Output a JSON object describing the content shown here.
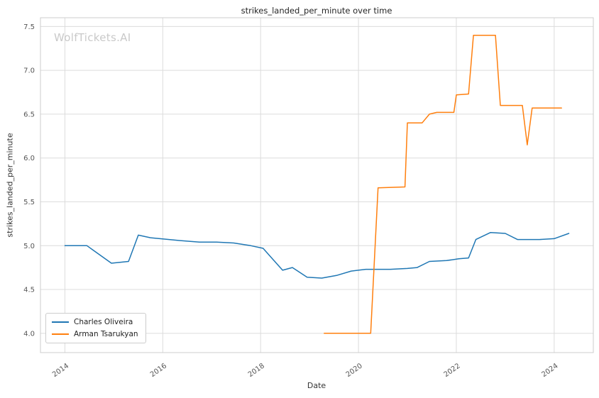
{
  "watermark": "WolfTickets.AI",
  "chart_data": {
    "type": "line",
    "title": "strikes_landed_per_minute over time",
    "xlabel": "Date",
    "ylabel": "strikes_landed_per_minute",
    "xlim": [
      2013.5,
      2024.8
    ],
    "ylim": [
      3.78,
      7.6
    ],
    "xticks": [
      2014,
      2016,
      2018,
      2020,
      2022,
      2024
    ],
    "yticks": [
      4.0,
      4.5,
      5.0,
      5.5,
      6.0,
      6.5,
      7.0,
      7.5
    ],
    "grid": true,
    "legend_position": "lower left",
    "series": [
      {
        "name": "Charles Oliveira",
        "color": "#1f77b4",
        "points": [
          [
            2014.0,
            5.0
          ],
          [
            2014.45,
            5.0
          ],
          [
            2014.95,
            4.8
          ],
          [
            2015.3,
            4.82
          ],
          [
            2015.5,
            5.12
          ],
          [
            2015.75,
            5.09
          ],
          [
            2016.3,
            5.06
          ],
          [
            2016.75,
            5.04
          ],
          [
            2017.1,
            5.04
          ],
          [
            2017.45,
            5.03
          ],
          [
            2017.8,
            5.0
          ],
          [
            2018.05,
            4.97
          ],
          [
            2018.45,
            4.72
          ],
          [
            2018.65,
            4.75
          ],
          [
            2018.95,
            4.64
          ],
          [
            2019.25,
            4.63
          ],
          [
            2019.55,
            4.66
          ],
          [
            2019.85,
            4.71
          ],
          [
            2020.15,
            4.73
          ],
          [
            2020.65,
            4.73
          ],
          [
            2021.0,
            4.74
          ],
          [
            2021.2,
            4.75
          ],
          [
            2021.45,
            4.82
          ],
          [
            2021.8,
            4.83
          ],
          [
            2022.05,
            4.85
          ],
          [
            2022.25,
            4.86
          ],
          [
            2022.4,
            5.07
          ],
          [
            2022.7,
            5.15
          ],
          [
            2023.0,
            5.14
          ],
          [
            2023.25,
            5.07
          ],
          [
            2023.7,
            5.07
          ],
          [
            2024.0,
            5.08
          ],
          [
            2024.3,
            5.14
          ]
        ]
      },
      {
        "name": "Arman Tsarukyan",
        "color": "#ff7f0e",
        "points": [
          [
            2019.3,
            4.0
          ],
          [
            2020.25,
            4.0
          ],
          [
            2020.4,
            5.66
          ],
          [
            2020.95,
            5.67
          ],
          [
            2021.0,
            6.4
          ],
          [
            2021.3,
            6.4
          ],
          [
            2021.45,
            6.5
          ],
          [
            2021.6,
            6.52
          ],
          [
            2021.95,
            6.52
          ],
          [
            2022.0,
            6.72
          ],
          [
            2022.25,
            6.73
          ],
          [
            2022.35,
            7.4
          ],
          [
            2022.8,
            7.4
          ],
          [
            2022.9,
            6.6
          ],
          [
            2023.35,
            6.6
          ],
          [
            2023.45,
            6.15
          ],
          [
            2023.55,
            6.57
          ],
          [
            2024.15,
            6.57
          ]
        ]
      }
    ]
  }
}
